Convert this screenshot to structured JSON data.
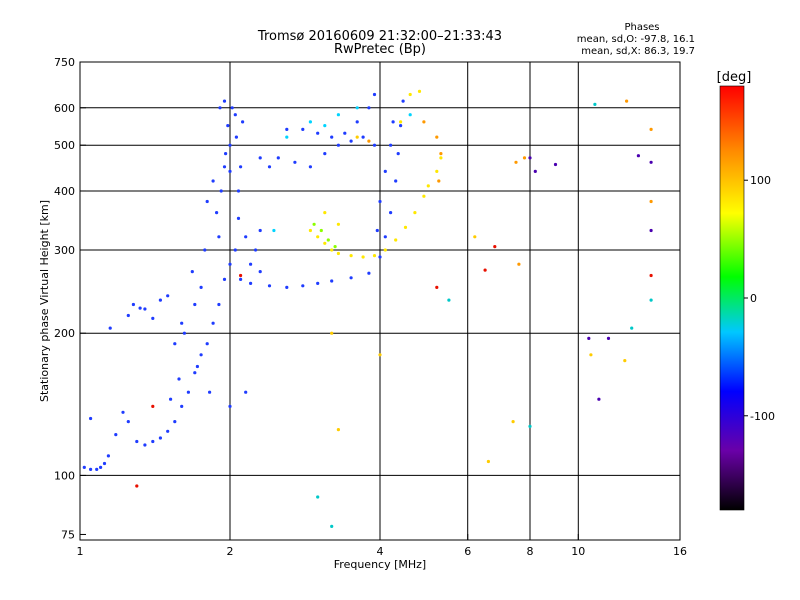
{
  "chart_data": {
    "type": "scatter",
    "title": "Tromsø 20160609 21:32:00–21:33:43",
    "subtitle": "RwPretec (Bp)",
    "xlabel": "Frequency [MHz]",
    "ylabel": "Stationary phase Virtual Height [km]",
    "x_scale": "log2",
    "y_scale": "log",
    "xlim": [
      1,
      16
    ],
    "ylim": [
      73,
      750
    ],
    "x_ticks": [
      1,
      2,
      4,
      6,
      8,
      10,
      16
    ],
    "x_gridlines": [
      2,
      4,
      6,
      8,
      10
    ],
    "y_ticks": [
      75,
      100,
      200,
      300,
      400,
      500,
      600,
      750
    ],
    "y_gridlines": [
      100,
      200,
      300,
      400,
      500,
      600
    ],
    "phases": {
      "title": "Phases",
      "o_line": "mean, sd,O: -97.8, 16.1",
      "x_line": "mean, sd,X:  86.3, 19.7"
    },
    "colorbar": {
      "unit": "[deg]",
      "ticks": [
        100,
        0,
        -100
      ],
      "range": [
        -180,
        180
      ],
      "colors": [
        "#000000",
        "#6a00a8",
        "#0000ff",
        "#00c8ff",
        "#00ff00",
        "#ffff00",
        "#ff8800",
        "#ff0000"
      ]
    },
    "series": [
      {
        "color": "#1f3cff",
        "points": [
          [
            1.02,
            104
          ],
          [
            1.05,
            103
          ],
          [
            1.08,
            103
          ],
          [
            1.1,
            104
          ],
          [
            1.12,
            106
          ],
          [
            1.14,
            110
          ],
          [
            1.05,
            132
          ],
          [
            1.15,
            205
          ],
          [
            1.18,
            122
          ],
          [
            1.22,
            136
          ],
          [
            1.25,
            218
          ],
          [
            1.28,
            230
          ],
          [
            1.32,
            226
          ],
          [
            1.3,
            118
          ],
          [
            1.35,
            116
          ],
          [
            1.4,
            118
          ],
          [
            1.45,
            120
          ],
          [
            1.5,
            124
          ],
          [
            1.55,
            130
          ],
          [
            1.6,
            140
          ],
          [
            1.65,
            150
          ],
          [
            1.7,
            165
          ],
          [
            1.75,
            180
          ],
          [
            1.8,
            190
          ],
          [
            1.85,
            210
          ],
          [
            1.9,
            230
          ],
          [
            1.95,
            260
          ],
          [
            2.0,
            280
          ],
          [
            2.05,
            300
          ],
          [
            1.9,
            320
          ],
          [
            1.88,
            360
          ],
          [
            1.92,
            400
          ],
          [
            1.95,
            450
          ],
          [
            2.0,
            500
          ],
          [
            1.98,
            550
          ],
          [
            2.02,
            600
          ],
          [
            1.95,
            620
          ],
          [
            2.05,
            580
          ],
          [
            2.1,
            450
          ],
          [
            2.08,
            350
          ],
          [
            1.75,
            250
          ],
          [
            1.7,
            230
          ],
          [
            1.6,
            210
          ],
          [
            1.55,
            190
          ],
          [
            1.62,
            200
          ],
          [
            1.72,
            170
          ],
          [
            1.82,
            150
          ],
          [
            2.0,
            140
          ],
          [
            2.1,
            260
          ],
          [
            2.2,
            255
          ],
          [
            2.4,
            252
          ],
          [
            2.6,
            250
          ],
          [
            2.8,
            252
          ],
          [
            3.0,
            255
          ],
          [
            3.2,
            258
          ],
          [
            3.5,
            262
          ],
          [
            3.8,
            268
          ],
          [
            4.0,
            290
          ],
          [
            4.1,
            320
          ],
          [
            4.2,
            360
          ],
          [
            4.3,
            420
          ],
          [
            4.35,
            480
          ],
          [
            4.4,
            550
          ],
          [
            4.45,
            620
          ],
          [
            3.9,
            640
          ],
          [
            3.8,
            600
          ],
          [
            3.6,
            560
          ],
          [
            3.4,
            530
          ],
          [
            3.2,
            520
          ],
          [
            3.0,
            530
          ],
          [
            2.8,
            540
          ],
          [
            2.6,
            540
          ],
          [
            2.5,
            470
          ],
          [
            2.7,
            460
          ],
          [
            2.9,
            450
          ],
          [
            3.1,
            480
          ],
          [
            3.3,
            500
          ],
          [
            3.5,
            510
          ],
          [
            2.3,
            470
          ],
          [
            2.4,
            450
          ],
          [
            4.1,
            440
          ],
          [
            4.2,
            500
          ],
          [
            4.25,
            560
          ],
          [
            3.7,
            520
          ],
          [
            3.9,
            500
          ],
          [
            4.0,
            380
          ],
          [
            3.95,
            330
          ],
          [
            2.2,
            280
          ],
          [
            2.3,
            270
          ],
          [
            2.25,
            300
          ],
          [
            2.15,
            320
          ],
          [
            1.85,
            420
          ],
          [
            1.8,
            380
          ],
          [
            1.78,
            300
          ],
          [
            1.68,
            270
          ],
          [
            1.5,
            240
          ],
          [
            1.45,
            235
          ],
          [
            1.4,
            215
          ],
          [
            1.35,
            225
          ],
          [
            1.25,
            130
          ],
          [
            1.52,
            145
          ],
          [
            1.58,
            160
          ],
          [
            2.15,
            150
          ],
          [
            1.96,
            480
          ],
          [
            2.06,
            520
          ],
          [
            2.12,
            560
          ],
          [
            1.91,
            600
          ],
          [
            2.0,
            440
          ],
          [
            2.08,
            400
          ],
          [
            2.3,
            330
          ]
        ]
      },
      {
        "color": "#ffe800",
        "points": [
          [
            2.9,
            330
          ],
          [
            3.0,
            320
          ],
          [
            3.1,
            310
          ],
          [
            3.2,
            300
          ],
          [
            3.3,
            295
          ],
          [
            3.5,
            292
          ],
          [
            3.7,
            290
          ],
          [
            3.9,
            292
          ],
          [
            4.1,
            300
          ],
          [
            4.3,
            315
          ],
          [
            4.5,
            335
          ],
          [
            4.7,
            360
          ],
          [
            4.9,
            390
          ],
          [
            5.0,
            410
          ],
          [
            5.2,
            440
          ],
          [
            5.3,
            470
          ],
          [
            3.1,
            360
          ],
          [
            3.3,
            340
          ],
          [
            4.8,
            650
          ],
          [
            4.6,
            640
          ],
          [
            4.4,
            560
          ]
        ]
      },
      {
        "color": "#8cff00",
        "points": [
          [
            2.95,
            340
          ],
          [
            3.05,
            330
          ],
          [
            3.15,
            315
          ],
          [
            3.25,
            305
          ]
        ]
      },
      {
        "color": "#00d4ff",
        "points": [
          [
            2.6,
            520
          ],
          [
            2.9,
            560
          ],
          [
            3.3,
            580
          ],
          [
            3.6,
            600
          ],
          [
            4.6,
            580
          ],
          [
            2.45,
            330
          ],
          [
            3.1,
            550
          ]
        ]
      },
      {
        "color": "#ff9900",
        "points": [
          [
            5.2,
            520
          ],
          [
            5.3,
            480
          ],
          [
            5.25,
            420
          ],
          [
            7.5,
            460
          ],
          [
            7.8,
            470
          ],
          [
            12.5,
            620
          ],
          [
            14,
            540
          ],
          [
            14,
            380
          ],
          [
            7.6,
            280
          ],
          [
            3.8,
            510
          ],
          [
            4.9,
            560
          ]
        ]
      },
      {
        "color": "#e81000",
        "points": [
          [
            1.4,
            140
          ],
          [
            1.3,
            95
          ],
          [
            2.1,
            265
          ],
          [
            5.2,
            250
          ],
          [
            6.5,
            272
          ],
          [
            14,
            265
          ],
          [
            6.8,
            305
          ]
        ]
      },
      {
        "color": "#4a00b0",
        "points": [
          [
            8.0,
            470
          ],
          [
            9.0,
            455
          ],
          [
            8.2,
            440
          ],
          [
            11.0,
            145
          ],
          [
            10.5,
            195
          ],
          [
            11.5,
            195
          ],
          [
            13.2,
            475
          ],
          [
            14,
            330
          ],
          [
            14,
            460
          ]
        ]
      },
      {
        "color": "#00c8c8",
        "points": [
          [
            3.0,
            90
          ],
          [
            3.2,
            78
          ],
          [
            5.5,
            235
          ],
          [
            8.0,
            127
          ],
          [
            10.8,
            610
          ],
          [
            14,
            235
          ],
          [
            12.8,
            205
          ]
        ]
      },
      {
        "color": "#ffcc00",
        "points": [
          [
            3.2,
            200
          ],
          [
            3.3,
            125
          ],
          [
            4.0,
            180
          ],
          [
            6.6,
            107
          ],
          [
            10.6,
            180
          ],
          [
            12.4,
            175
          ],
          [
            6.2,
            320
          ],
          [
            7.4,
            130
          ],
          [
            3.6,
            520
          ]
        ]
      }
    ]
  }
}
